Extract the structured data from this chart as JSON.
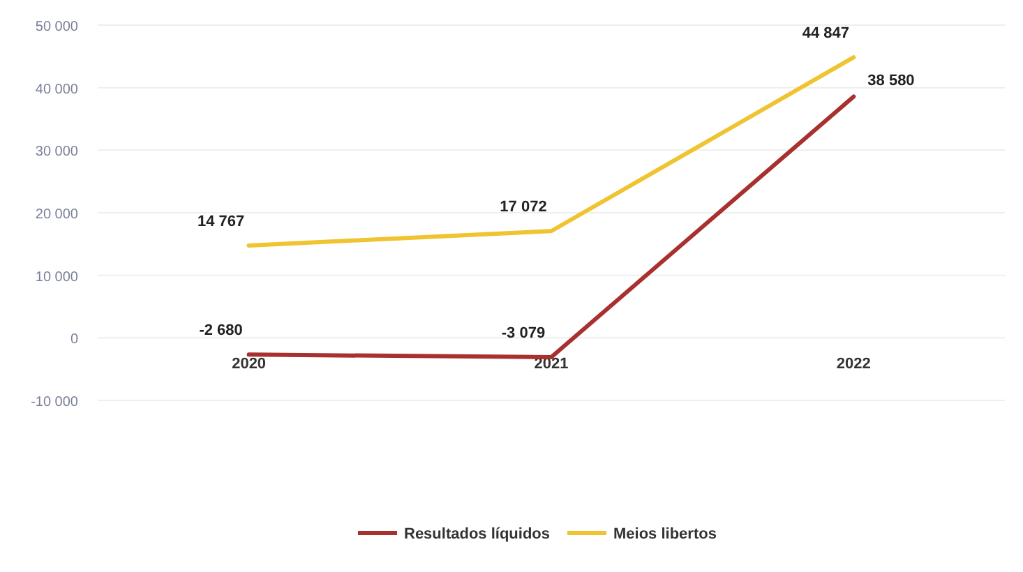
{
  "chart_data": {
    "type": "line",
    "categories": [
      "2020",
      "2021",
      "2022"
    ],
    "series": [
      {
        "name": "Resultados líquidos",
        "color": "#a8302f",
        "values": [
          -2680,
          -3079,
          38580
        ],
        "value_labels": [
          "-2 680",
          "-3 079",
          "38 580"
        ]
      },
      {
        "name": "Meios libertos",
        "color": "#f0c330",
        "values": [
          14767,
          17072,
          44847
        ],
        "value_labels": [
          "14 767",
          "17 072",
          "44 847"
        ]
      }
    ],
    "ylim": [
      -10000,
      50000
    ],
    "yticks": [
      {
        "value": -10000,
        "label": "-10 000"
      },
      0,
      {
        "value": 10000,
        "label": "10 000"
      },
      {
        "value": 20000,
        "label": "20 000"
      },
      {
        "value": 30000,
        "label": "30 000"
      },
      {
        "value": 40000,
        "label": "40 000"
      },
      {
        "value": 50000,
        "label": "50 000"
      }
    ],
    "grid": "y",
    "legend": "bottom",
    "marker": "none",
    "line_style": "solid"
  }
}
